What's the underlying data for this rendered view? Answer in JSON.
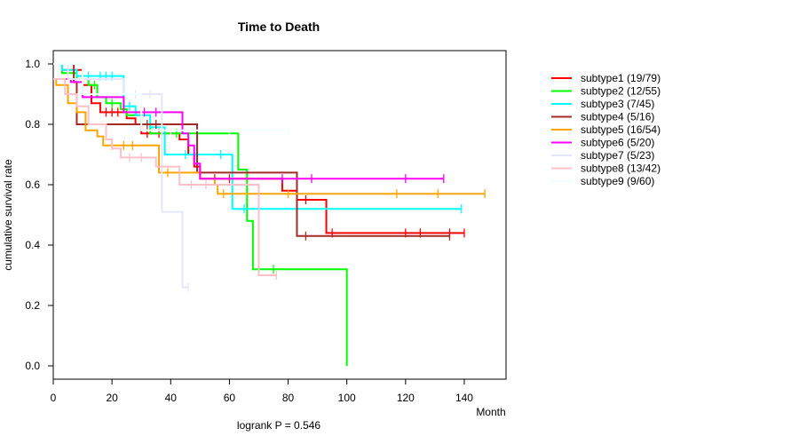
{
  "chart_data": {
    "type": "line",
    "title": "Time to Death",
    "xlabel": "Month",
    "ylabel": "cumulative survival rate",
    "footnote": "logrank P = 0.546",
    "xlim": [
      0,
      155
    ],
    "ylim": [
      -0.04,
      1.04
    ],
    "xticks": [
      0,
      20,
      40,
      60,
      80,
      100,
      120,
      140
    ],
    "yticks": [
      0.0,
      0.2,
      0.4,
      0.6,
      0.8,
      1.0
    ],
    "ytick_labels": [
      "0.0",
      "0.2",
      "0.4",
      "0.6",
      "0.8",
      "1.0"
    ],
    "legend_position": "right",
    "series": [
      {
        "name": "subtype1 (19/79)",
        "color": "#FF0000",
        "steps": [
          [
            0,
            1.0
          ],
          [
            3,
            0.98
          ],
          [
            10,
            0.93
          ],
          [
            13,
            0.87
          ],
          [
            16,
            0.84
          ],
          [
            25,
            0.82
          ],
          [
            28,
            0.8
          ],
          [
            30,
            0.77
          ],
          [
            43,
            0.75
          ],
          [
            46,
            0.7
          ],
          [
            48,
            0.66
          ],
          [
            50,
            0.62
          ],
          [
            78,
            0.58
          ],
          [
            83,
            0.55
          ],
          [
            93,
            0.44
          ],
          [
            140,
            0.44
          ]
        ],
        "censor": [
          [
            18,
            0.84
          ],
          [
            20,
            0.84
          ],
          [
            22,
            0.84
          ],
          [
            32,
            0.77
          ],
          [
            36,
            0.77
          ],
          [
            55,
            0.62
          ],
          [
            60,
            0.62
          ],
          [
            86,
            0.55
          ],
          [
            95,
            0.44
          ],
          [
            120,
            0.44
          ],
          [
            125,
            0.44
          ],
          [
            135,
            0.44
          ],
          [
            140,
            0.44
          ]
        ]
      },
      {
        "name": "subtype2 (12/55)",
        "color": "#00FF00",
        "steps": [
          [
            0,
            1.0
          ],
          [
            3,
            0.97
          ],
          [
            8,
            0.95
          ],
          [
            12,
            0.93
          ],
          [
            15,
            0.89
          ],
          [
            18,
            0.87
          ],
          [
            23,
            0.85
          ],
          [
            25,
            0.83
          ],
          [
            30,
            0.8
          ],
          [
            33,
            0.77
          ],
          [
            63,
            0.65
          ],
          [
            66,
            0.48
          ],
          [
            68,
            0.32
          ],
          [
            100,
            0.0
          ]
        ],
        "censor": [
          [
            5,
            0.97
          ],
          [
            14,
            0.93
          ],
          [
            20,
            0.87
          ],
          [
            38,
            0.77
          ],
          [
            42,
            0.77
          ],
          [
            75,
            0.32
          ]
        ]
      },
      {
        "name": "subtype3 (7/45)",
        "color": "#00FFFF",
        "steps": [
          [
            0,
            1.0
          ],
          [
            3,
            0.98
          ],
          [
            8,
            0.96
          ],
          [
            24,
            0.86
          ],
          [
            28,
            0.83
          ],
          [
            33,
            0.79
          ],
          [
            38,
            0.7
          ],
          [
            61,
            0.52
          ],
          [
            139,
            0.52
          ]
        ],
        "censor": [
          [
            12,
            0.96
          ],
          [
            16,
            0.96
          ],
          [
            18,
            0.96
          ],
          [
            20,
            0.96
          ],
          [
            26,
            0.86
          ],
          [
            45,
            0.7
          ],
          [
            57,
            0.7
          ],
          [
            65,
            0.52
          ],
          [
            139,
            0.52
          ]
        ]
      },
      {
        "name": "subtype4 (5/16)",
        "color": "#A52A2A",
        "steps": [
          [
            0,
            1.0
          ],
          [
            7,
            0.94
          ],
          [
            8,
            0.8
          ],
          [
            49,
            0.64
          ],
          [
            83,
            0.43
          ],
          [
            135,
            0.43
          ]
        ],
        "censor": [
          [
            32,
            0.8
          ],
          [
            35,
            0.8
          ],
          [
            86,
            0.43
          ],
          [
            135,
            0.43
          ]
        ]
      },
      {
        "name": "subtype5 (16/54)",
        "color": "#FFA500",
        "steps": [
          [
            0,
            0.95
          ],
          [
            1,
            0.93
          ],
          [
            5,
            0.87
          ],
          [
            8,
            0.84
          ],
          [
            11,
            0.78
          ],
          [
            15,
            0.76
          ],
          [
            17,
            0.73
          ],
          [
            36,
            0.64
          ],
          [
            50,
            0.62
          ],
          [
            55,
            0.6
          ],
          [
            56,
            0.57
          ],
          [
            147,
            0.57
          ]
        ],
        "censor": [
          [
            20,
            0.73
          ],
          [
            24,
            0.73
          ],
          [
            27,
            0.73
          ],
          [
            39,
            0.64
          ],
          [
            43,
            0.64
          ],
          [
            58,
            0.57
          ],
          [
            80,
            0.57
          ],
          [
            117,
            0.57
          ],
          [
            131,
            0.57
          ],
          [
            147,
            0.57
          ]
        ]
      },
      {
        "name": "subtype6 (5/20)",
        "color": "#FF00FF",
        "steps": [
          [
            0,
            0.95
          ],
          [
            6,
            0.94
          ],
          [
            10,
            0.89
          ],
          [
            24,
            0.84
          ],
          [
            44,
            0.77
          ],
          [
            46,
            0.73
          ],
          [
            48,
            0.67
          ],
          [
            50,
            0.62
          ],
          [
            133,
            0.62
          ]
        ],
        "censor": [
          [
            31,
            0.84
          ],
          [
            35,
            0.84
          ],
          [
            78,
            0.62
          ],
          [
            88,
            0.62
          ],
          [
            120,
            0.62
          ],
          [
            133,
            0.62
          ]
        ]
      },
      {
        "name": "subtype7 (5/23)",
        "color": "#E6E6FA",
        "steps": [
          [
            0,
            1.0
          ],
          [
            5,
            0.95
          ],
          [
            24,
            0.9
          ],
          [
            37,
            0.51
          ],
          [
            44,
            0.26
          ],
          [
            46,
            0.26
          ]
        ],
        "censor": [
          [
            28,
            0.9
          ],
          [
            33,
            0.9
          ],
          [
            46,
            0.26
          ]
        ]
      },
      {
        "name": "subtype8 (13/42)",
        "color": "#FFC0CB",
        "steps": [
          [
            0,
            0.95
          ],
          [
            4,
            0.9
          ],
          [
            8,
            0.86
          ],
          [
            12,
            0.8
          ],
          [
            18,
            0.75
          ],
          [
            20,
            0.72
          ],
          [
            23,
            0.69
          ],
          [
            35,
            0.66
          ],
          [
            43,
            0.6
          ],
          [
            70,
            0.3
          ],
          [
            76,
            0.3
          ]
        ],
        "censor": [
          [
            26,
            0.69
          ],
          [
            30,
            0.69
          ],
          [
            47,
            0.6
          ],
          [
            52,
            0.6
          ],
          [
            76,
            0.3
          ]
        ]
      },
      {
        "name": "subtype9 (9/60)",
        "color": "#F0FFFF",
        "steps": [
          [
            0,
            1.0
          ],
          [
            10,
            0.9
          ],
          [
            30,
            0.78
          ],
          [
            80,
            0.78
          ]
        ],
        "censor": [
          [
            40,
            0.78
          ],
          [
            60,
            0.78
          ],
          [
            80,
            0.78
          ]
        ]
      }
    ]
  }
}
